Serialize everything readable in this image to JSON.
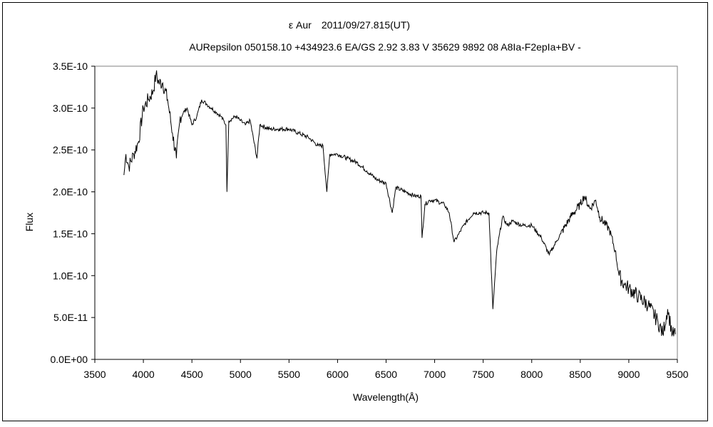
{
  "chart_data": {
    "type": "line",
    "title": "ε Aur　2011/09/27.815(UT)",
    "subtitle": "AURepsilon 050158.10 +434923.6 EA/GS 2.92 3.83 V 35629 9892 08 A8Ia-F2epIa+BV -",
    "xlabel": "Wavelength(Å)",
    "ylabel": "Flux",
    "xlim": [
      3500,
      9500
    ],
    "ylim": [
      0,
      3.5e-10
    ],
    "grid": false,
    "x_ticks": [
      "3500",
      "4000",
      "4500",
      "5000",
      "5500",
      "6000",
      "6500",
      "7000",
      "7500",
      "8000",
      "8500",
      "9000",
      "9500"
    ],
    "y_ticks": [
      "0.0E+00",
      "5.0E-11",
      "1.0E-10",
      "1.5E-10",
      "2.0E-10",
      "2.5E-10",
      "3.0E-10",
      "3.5E-10"
    ],
    "y_unit": 1e-10,
    "series": [
      {
        "name": "Flux",
        "color": "#000000",
        "x": [
          3800,
          3820,
          3850,
          3900,
          3950,
          4000,
          4050,
          4100,
          4130,
          4160,
          4200,
          4250,
          4300,
          4340,
          4380,
          4450,
          4500,
          4550,
          4600,
          4650,
          4700,
          4750,
          4800,
          4850,
          4861,
          4880,
          4950,
          5000,
          5050,
          5100,
          5170,
          5200,
          5300,
          5400,
          5500,
          5600,
          5700,
          5800,
          5850,
          5890,
          5920,
          6000,
          6100,
          6200,
          6300,
          6400,
          6500,
          6563,
          6600,
          6700,
          6800,
          6860,
          6870,
          6900,
          6950,
          7000,
          7100,
          7150,
          7200,
          7250,
          7300,
          7400,
          7500,
          7560,
          7600,
          7640,
          7700,
          7750,
          7800,
          7900,
          8000,
          8100,
          8180,
          8250,
          8300,
          8400,
          8500,
          8540,
          8600,
          8660,
          8700,
          8800,
          8860,
          8900,
          8950,
          9000,
          9100,
          9200,
          9300,
          9350,
          9400,
          9450,
          9480
        ],
        "y": [
          2.2,
          2.45,
          2.3,
          2.45,
          2.6,
          3.0,
          3.1,
          3.2,
          3.4,
          3.3,
          3.3,
          3.1,
          2.7,
          2.4,
          2.9,
          3.0,
          2.8,
          2.9,
          3.1,
          3.05,
          3.0,
          2.95,
          2.9,
          2.8,
          2.0,
          2.85,
          2.9,
          2.85,
          2.8,
          2.85,
          2.4,
          2.8,
          2.75,
          2.75,
          2.75,
          2.7,
          2.65,
          2.55,
          2.55,
          2.0,
          2.45,
          2.45,
          2.4,
          2.35,
          2.25,
          2.15,
          2.1,
          1.75,
          2.05,
          2.0,
          1.95,
          1.95,
          1.45,
          1.85,
          1.9,
          1.9,
          1.85,
          1.75,
          1.4,
          1.5,
          1.6,
          1.75,
          1.75,
          1.75,
          0.6,
          1.3,
          1.7,
          1.6,
          1.65,
          1.6,
          1.6,
          1.45,
          1.25,
          1.4,
          1.5,
          1.7,
          1.85,
          1.95,
          1.8,
          1.9,
          1.7,
          1.55,
          1.3,
          1.0,
          0.9,
          0.85,
          0.75,
          0.65,
          0.45,
          0.3,
          0.6,
          0.3,
          0.3
        ]
      }
    ]
  }
}
